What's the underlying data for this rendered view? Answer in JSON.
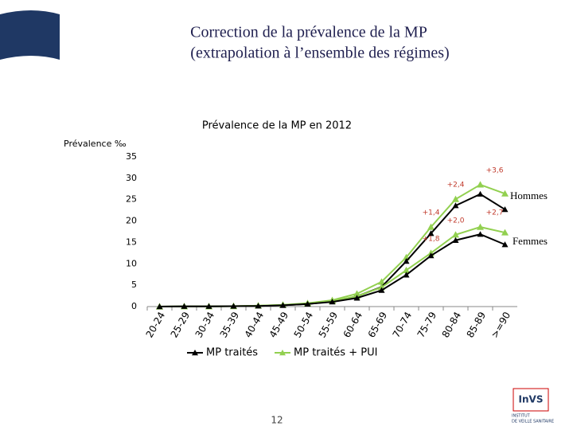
{
  "header": {
    "title_line1": "Correction de la prévalence de la MP",
    "title_line2": "(extrapolation à l’ensemble des régimes)"
  },
  "chart_data": {
    "type": "line",
    "title": "Prévalence de la MP  en 2012",
    "y_label": "Prévalence ‰",
    "categories": [
      "20-24",
      "25-29",
      "30-34",
      "35-39",
      "40-44",
      "45-49",
      "50-54",
      "55-59",
      "60-64",
      "65-69",
      "70-74",
      "75-79",
      "80-84",
      "85-89",
      ">=90"
    ],
    "ylim": [
      0,
      35
    ],
    "yticks": [
      0,
      5,
      10,
      15,
      20,
      25,
      30,
      35
    ],
    "legend": [
      {
        "name": "MP traités",
        "color": "#000000"
      },
      {
        "name": "MP traités + PUI",
        "color": "#92d050"
      }
    ],
    "groups": [
      {
        "label": "Hommes",
        "series": [
          {
            "values": [
              0,
              0.05,
              0.05,
              0.1,
              0.15,
              0.3,
              0.6,
              1.2,
              2.4,
              4.6,
              10.6,
              17.1,
              23.6,
              26.3,
              22.7
            ]
          },
          {
            "values": [
              0,
              0.05,
              0.05,
              0.1,
              0.2,
              0.4,
              0.8,
              1.5,
              3.0,
              5.8,
              11.5,
              18.6,
              25.1,
              28.5,
              26.4
            ]
          }
        ],
        "annotations": [
          {
            "category": "75-79",
            "text": "+1,4"
          },
          {
            "category": "80-84",
            "text": "+2,4"
          },
          {
            "category": "85-89",
            "text": "+3,6"
          }
        ]
      },
      {
        "label": "Femmes",
        "series": [
          {
            "values": [
              0,
              0.05,
              0.05,
              0.1,
              0.15,
              0.3,
              0.6,
              1.1,
              2.0,
              3.8,
              7.4,
              11.9,
              15.5,
              16.9,
              14.5
            ]
          },
          {
            "values": [
              0,
              0.05,
              0.05,
              0.1,
              0.2,
              0.4,
              0.7,
              1.3,
              2.4,
              4.5,
              8.5,
              12.5,
              16.8,
              18.6,
              17.3
            ]
          }
        ],
        "annotations": [
          {
            "category": "75-79",
            "text": "+1,8"
          },
          {
            "category": "80-84",
            "text": "+2,0"
          },
          {
            "category": "85-89",
            "text": "+2,7"
          }
        ]
      }
    ]
  },
  "footer": {
    "page": "12",
    "logo": "InVS",
    "logo_sub1": "INSTITUT",
    "logo_sub2": "DE VEILLE SANITAIRE"
  }
}
